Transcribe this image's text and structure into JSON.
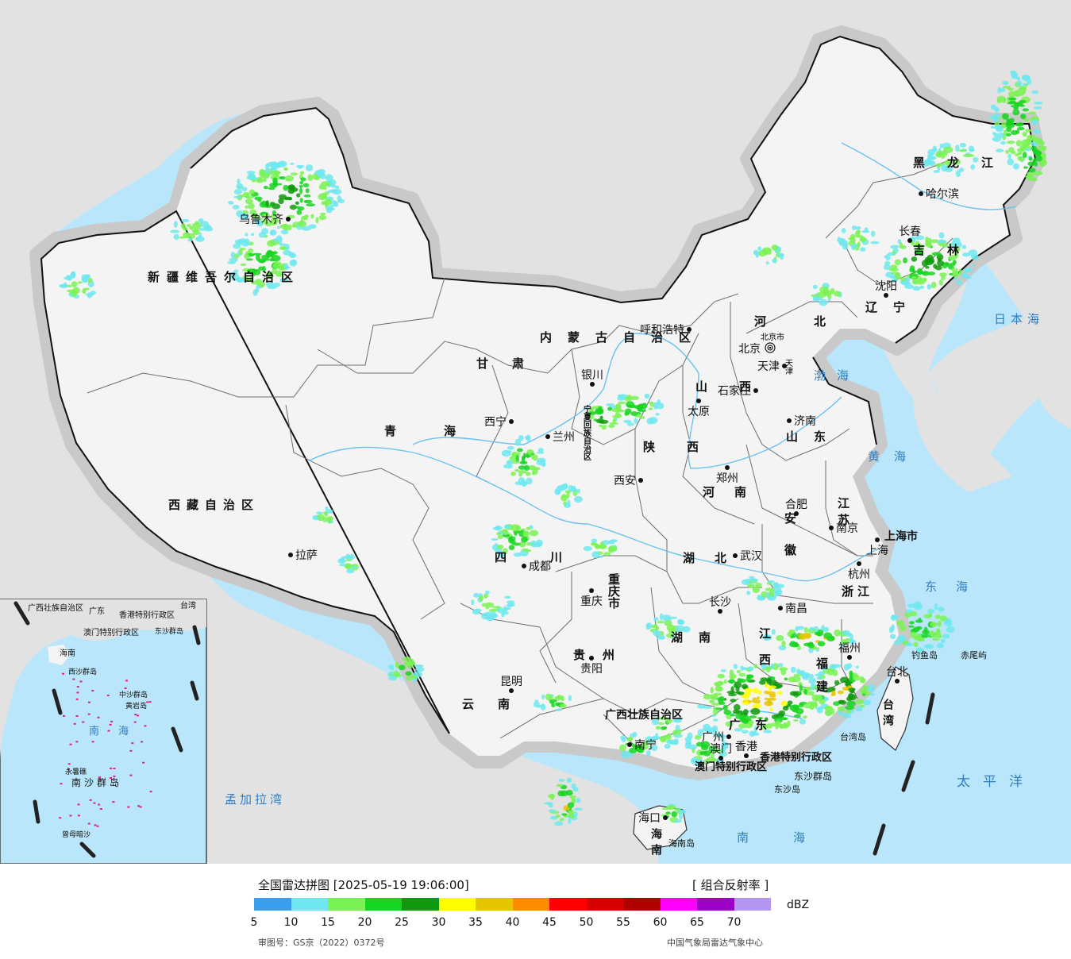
{
  "map": {
    "colors": {
      "sea": "#b9e6fb",
      "land_china": "#f4f4f4",
      "land_other": "#e2e2e2",
      "halo": "#c9c9c9",
      "border": "#111111",
      "province": "#6e6e6e",
      "river": "#6cc2ef"
    },
    "provinces": [
      {
        "id": "xinjiang",
        "label": "新疆维吾尔自治区"
      },
      {
        "id": "xizang",
        "label": "西藏自治区"
      },
      {
        "id": "qinghai",
        "label": "青海"
      },
      {
        "id": "gansu",
        "label": "甘肃"
      },
      {
        "id": "neimenggu",
        "label": "内蒙古自治区"
      },
      {
        "id": "heilongjiang",
        "label": "黑龙江"
      },
      {
        "id": "jilin",
        "label": "吉林"
      },
      {
        "id": "liaoning",
        "label": "辽宁"
      },
      {
        "id": "hebei",
        "label": "河北"
      },
      {
        "id": "shanxi",
        "label": "山西"
      },
      {
        "id": "shandong",
        "label": "山东"
      },
      {
        "id": "henan",
        "label": "河南"
      },
      {
        "id": "shaanxi",
        "label": "陕西"
      },
      {
        "id": "ningxia",
        "label": "宁夏回族自治区"
      },
      {
        "id": "sichuan",
        "label": "四川"
      },
      {
        "id": "chongqing",
        "label": "重庆市"
      },
      {
        "id": "hubei",
        "label": "湖北"
      },
      {
        "id": "anhui",
        "label": "安徽"
      },
      {
        "id": "jiangsu",
        "label": "江苏"
      },
      {
        "id": "shanghai",
        "label": "上海市"
      },
      {
        "id": "zhejiang",
        "label": "浙江"
      },
      {
        "id": "jiangxi",
        "label": "江西"
      },
      {
        "id": "hunan",
        "label": "湖南"
      },
      {
        "id": "guizhou",
        "label": "贵州"
      },
      {
        "id": "yunnan",
        "label": "云南"
      },
      {
        "id": "guangxi",
        "label": "广西壮族自治区"
      },
      {
        "id": "guangdong",
        "label": "广东"
      },
      {
        "id": "fujian",
        "label": "福建"
      },
      {
        "id": "taiwan",
        "label": "台湾"
      },
      {
        "id": "hainan",
        "label": "海南"
      },
      {
        "id": "hongkong",
        "label": "香港特别行政区"
      },
      {
        "id": "macao",
        "label": "澳门特别行政区"
      }
    ],
    "cities": [
      {
        "id": "urumqi",
        "label": "乌鲁木齐"
      },
      {
        "id": "lhasa",
        "label": "拉萨"
      },
      {
        "id": "xining",
        "label": "西宁"
      },
      {
        "id": "lanzhou",
        "label": "兰州"
      },
      {
        "id": "yinchuan",
        "label": "银川"
      },
      {
        "id": "hohhot",
        "label": "呼和浩特"
      },
      {
        "id": "harbin",
        "label": "哈尔滨"
      },
      {
        "id": "changchun",
        "label": "长春"
      },
      {
        "id": "shenyang",
        "label": "沈阳"
      },
      {
        "id": "beijing",
        "label": "北京"
      },
      {
        "id": "tianjin",
        "label": "天津"
      },
      {
        "id": "shijiazhuang",
        "label": "石家庄"
      },
      {
        "id": "taiyuan",
        "label": "太原"
      },
      {
        "id": "jinan",
        "label": "济南"
      },
      {
        "id": "zhengzhou",
        "label": "郑州"
      },
      {
        "id": "xian",
        "label": "西安"
      },
      {
        "id": "chengdu",
        "label": "成都"
      },
      {
        "id": "chongqing_c",
        "label": "重庆"
      },
      {
        "id": "wuhan",
        "label": "武汉"
      },
      {
        "id": "hefei",
        "label": "合肥"
      },
      {
        "id": "nanjing",
        "label": "南京"
      },
      {
        "id": "shanghai_c",
        "label": "上海"
      },
      {
        "id": "hangzhou",
        "label": "杭州"
      },
      {
        "id": "nanchang",
        "label": "南昌"
      },
      {
        "id": "changsha",
        "label": "长沙"
      },
      {
        "id": "guiyang",
        "label": "贵阳"
      },
      {
        "id": "kunming",
        "label": "昆明"
      },
      {
        "id": "nanning",
        "label": "南宁"
      },
      {
        "id": "guangzhou",
        "label": "广州"
      },
      {
        "id": "hongkong_c",
        "label": "香港"
      },
      {
        "id": "macao_c",
        "label": "澳门"
      },
      {
        "id": "fuzhou",
        "label": "福州"
      },
      {
        "id": "taipei",
        "label": "台北"
      },
      {
        "id": "haikou",
        "label": "海口"
      }
    ],
    "capital_small_label": "北京市",
    "tianjin_small_label": "天津",
    "seas": [
      {
        "id": "bohai",
        "label": "渤海"
      },
      {
        "id": "huanghai",
        "label": "黄海"
      },
      {
        "id": "donghai",
        "label": "东海"
      },
      {
        "id": "nanhai",
        "label": "南海"
      },
      {
        "id": "taipingyang",
        "label": "太平洋"
      },
      {
        "id": "ribenhai",
        "label": "日本海"
      },
      {
        "id": "mengjialawan",
        "label": "孟加拉湾"
      }
    ],
    "islands": [
      {
        "id": "diaoyudao",
        "label": "钓鱼岛"
      },
      {
        "id": "chiweiyu",
        "label": "赤尾屿"
      },
      {
        "id": "taiwandao",
        "label": "台湾岛"
      },
      {
        "id": "dongshaqundao",
        "label": "东沙群岛"
      },
      {
        "id": "dongshadao",
        "label": "东沙岛"
      },
      {
        "id": "hainandao",
        "label": "海南岛"
      }
    ],
    "inset_labels": [
      {
        "id": "ins-guangxi",
        "label": "广西壮族自治区"
      },
      {
        "id": "ins-guangdong",
        "label": "广东"
      },
      {
        "id": "ins-hk",
        "label": "香港特别行政区"
      },
      {
        "id": "ins-macao",
        "label": "澳门特别行政区"
      },
      {
        "id": "ins-dongsha",
        "label": "东沙群岛"
      },
      {
        "id": "ins-taiwan",
        "label": "台湾"
      },
      {
        "id": "ins-hainan",
        "label": "海南"
      },
      {
        "id": "ins-xisha",
        "label": "西沙群岛"
      },
      {
        "id": "ins-zhongsha",
        "label": "中沙群岛"
      },
      {
        "id": "ins-huangyan",
        "label": "黄岩岛"
      },
      {
        "id": "ins-nanhai",
        "label": "南海"
      },
      {
        "id": "ins-nansha",
        "label": "南沙群岛"
      },
      {
        "id": "ins-yongshu",
        "label": "永暑礁"
      },
      {
        "id": "ins-zengmu",
        "label": "曾母暗沙"
      }
    ]
  },
  "legend": {
    "title": "全国雷达拼图 [2025-05-19 19:06:00]",
    "product": "[ 组合反射率 ]",
    "unit": "dBZ",
    "approval": "审图号：GS京（2022）0372号",
    "source": "中国气象局雷达气象中心",
    "colors": [
      "#3a9ff0",
      "#6fe7ee",
      "#7bf254",
      "#16d51e",
      "#0f9a0b",
      "#ffff00",
      "#e6c600",
      "#ff8c00",
      "#ff0000",
      "#d90000",
      "#b00000",
      "#ff00ff",
      "#9c00c6",
      "#b497f0"
    ],
    "ticks": [
      "5",
      "10",
      "15",
      "20",
      "25",
      "30",
      "35",
      "40",
      "45",
      "50",
      "55",
      "60",
      "65",
      "70"
    ]
  }
}
